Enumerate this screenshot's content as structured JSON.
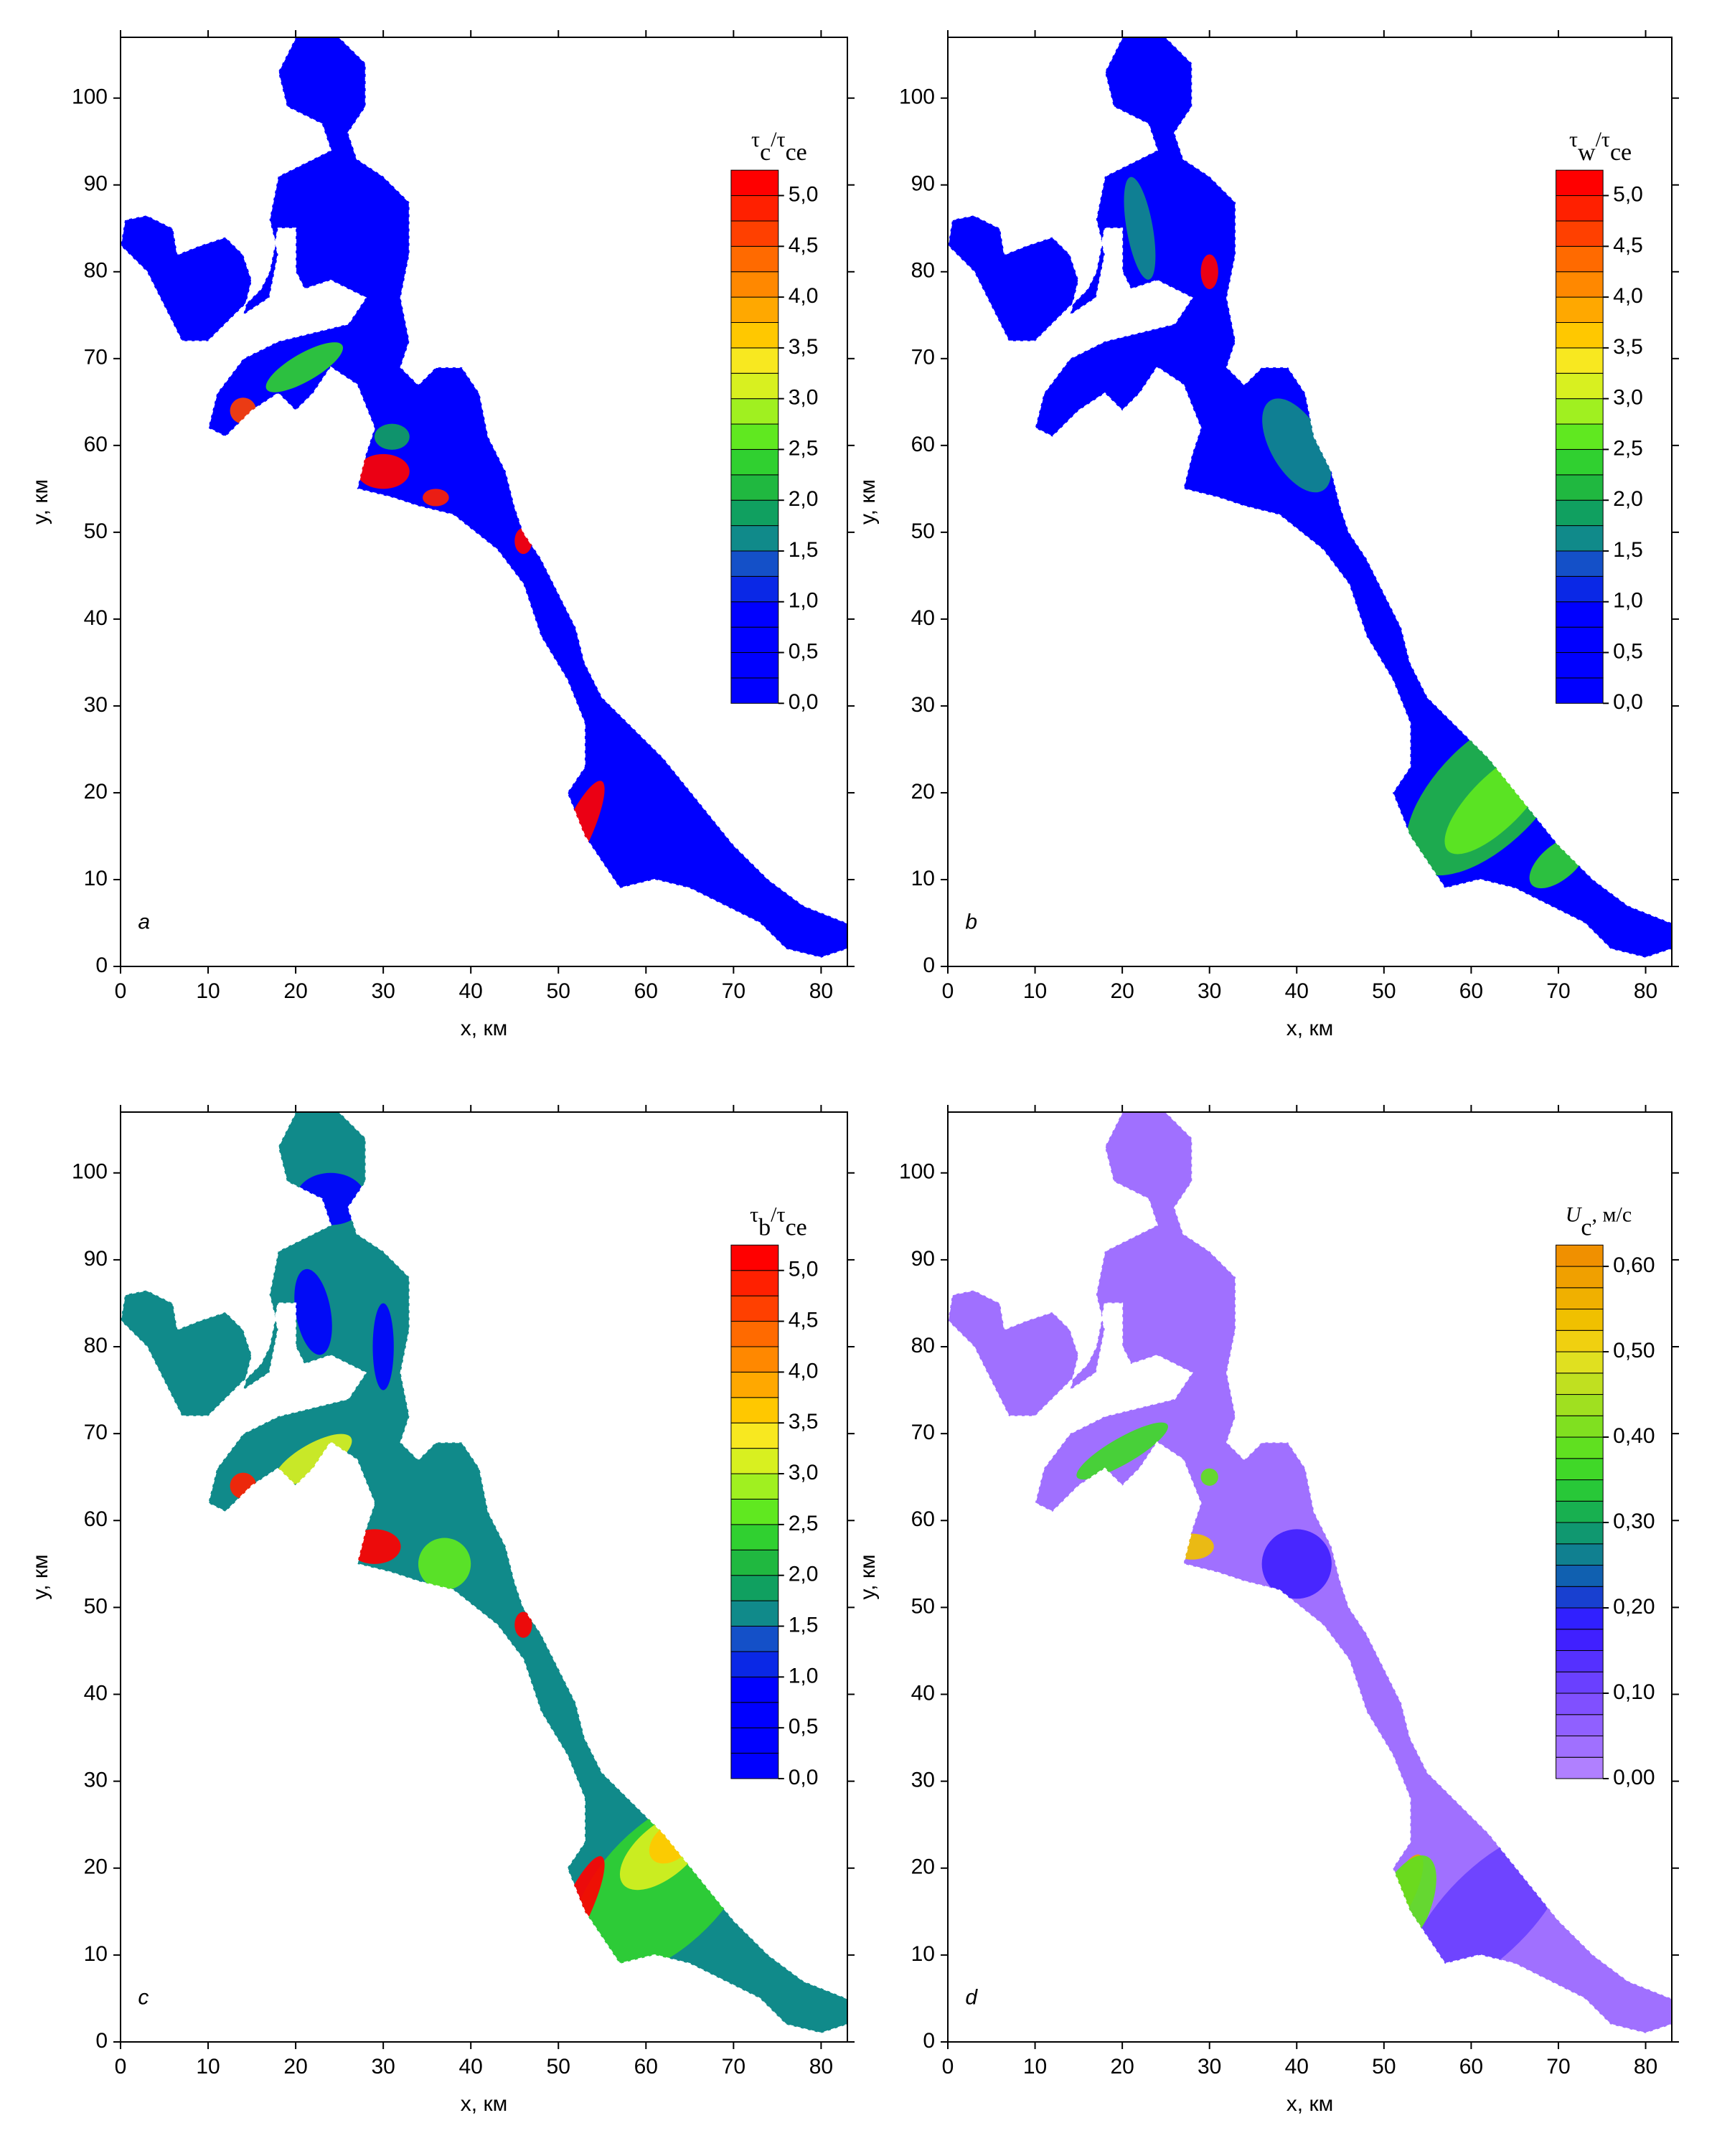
{
  "chart_data": [
    {
      "type": "contour",
      "panel_label": "a",
      "colorbar_title": [
        {
          "text": "τ"
        },
        {
          "text": "c",
          "sub": true
        },
        {
          "text": "/τ"
        },
        {
          "text": "ce",
          "sub": true
        }
      ],
      "xlabel": "x, км",
      "ylabel": "y, км",
      "xlim": [
        0,
        83
      ],
      "ylim": [
        0,
        107
      ],
      "xticks": [
        0,
        10,
        20,
        30,
        40,
        50,
        60,
        70,
        80
      ],
      "yticks": [
        0,
        10,
        20,
        30,
        40,
        50,
        60,
        70,
        80,
        90,
        100
      ],
      "colorbar": {
        "lim": [
          0,
          5.25
        ],
        "ticks": [
          {
            "value": 0,
            "label": "0,0"
          },
          {
            "value": 0.5,
            "label": "0,5"
          },
          {
            "value": 1,
            "label": "1,0"
          },
          {
            "value": 1.5,
            "label": "1,5"
          },
          {
            "value": 2,
            "label": "2,0"
          },
          {
            "value": 2.5,
            "label": "2,5"
          },
          {
            "value": 3,
            "label": "3,0"
          },
          {
            "value": 3.5,
            "label": "3,5"
          },
          {
            "value": 4,
            "label": "4,0"
          },
          {
            "value": 4.5,
            "label": "4,5"
          },
          {
            "value": 5,
            "label": "5,0"
          }
        ],
        "colors": [
          "#0000ff",
          "#0000ff",
          "#0000ff",
          "#0000ff",
          "#0a28e6",
          "#1450c8",
          "#108a8a",
          "#10a060",
          "#20b840",
          "#30d030",
          "#60e820",
          "#a0f020",
          "#d8f020",
          "#f8e820",
          "#ffc800",
          "#ffa800",
          "#ff8800",
          "#ff6a00",
          "#ff4000",
          "#ff2000",
          "#ff0000"
        ]
      }
    },
    {
      "type": "contour",
      "panel_label": "b",
      "colorbar_title": [
        {
          "text": "τ"
        },
        {
          "text": "w",
          "sub": true
        },
        {
          "text": "/τ"
        },
        {
          "text": "ce",
          "sub": true
        }
      ],
      "xlabel": "x, км",
      "ylabel": "y, км",
      "xlim": [
        0,
        83
      ],
      "ylim": [
        0,
        107
      ],
      "xticks": [
        0,
        10,
        20,
        30,
        40,
        50,
        60,
        70,
        80
      ],
      "yticks": [
        0,
        10,
        20,
        30,
        40,
        50,
        60,
        70,
        80,
        90,
        100
      ],
      "colorbar": {
        "lim": [
          0,
          5.25
        ],
        "ticks": [
          {
            "value": 0,
            "label": "0,0"
          },
          {
            "value": 0.5,
            "label": "0,5"
          },
          {
            "value": 1,
            "label": "1,0"
          },
          {
            "value": 1.5,
            "label": "1,5"
          },
          {
            "value": 2,
            "label": "2,0"
          },
          {
            "value": 2.5,
            "label": "2,5"
          },
          {
            "value": 3,
            "label": "3,0"
          },
          {
            "value": 3.5,
            "label": "3,5"
          },
          {
            "value": 4,
            "label": "4,0"
          },
          {
            "value": 4.5,
            "label": "4,5"
          },
          {
            "value": 5,
            "label": "5,0"
          }
        ],
        "colors": [
          "#0000ff",
          "#0000ff",
          "#0000ff",
          "#0000ff",
          "#0a28e6",
          "#1450c8",
          "#108a8a",
          "#10a060",
          "#20b840",
          "#30d030",
          "#60e820",
          "#a0f020",
          "#d8f020",
          "#f8e820",
          "#ffc800",
          "#ffa800",
          "#ff8800",
          "#ff6a00",
          "#ff4000",
          "#ff2000",
          "#ff0000"
        ]
      }
    },
    {
      "type": "contour",
      "panel_label": "c",
      "colorbar_title": [
        {
          "text": "τ"
        },
        {
          "text": "b",
          "sub": true
        },
        {
          "text": "/τ"
        },
        {
          "text": "ce",
          "sub": true
        }
      ],
      "xlabel": "x, км",
      "ylabel": "y, км",
      "xlim": [
        0,
        83
      ],
      "ylim": [
        0,
        107
      ],
      "xticks": [
        0,
        10,
        20,
        30,
        40,
        50,
        60,
        70,
        80
      ],
      "yticks": [
        0,
        10,
        20,
        30,
        40,
        50,
        60,
        70,
        80,
        90,
        100
      ],
      "colorbar": {
        "lim": [
          0,
          5.25
        ],
        "ticks": [
          {
            "value": 0,
            "label": "0,0"
          },
          {
            "value": 0.5,
            "label": "0,5"
          },
          {
            "value": 1,
            "label": "1,0"
          },
          {
            "value": 1.5,
            "label": "1,5"
          },
          {
            "value": 2,
            "label": "2,0"
          },
          {
            "value": 2.5,
            "label": "2,5"
          },
          {
            "value": 3,
            "label": "3,0"
          },
          {
            "value": 3.5,
            "label": "3,5"
          },
          {
            "value": 4,
            "label": "4,0"
          },
          {
            "value": 4.5,
            "label": "4,5"
          },
          {
            "value": 5,
            "label": "5,0"
          }
        ],
        "colors": [
          "#0000ff",
          "#0000ff",
          "#0000ff",
          "#0000ff",
          "#0a28e6",
          "#1450c8",
          "#108a8a",
          "#10a060",
          "#20b840",
          "#30d030",
          "#60e820",
          "#a0f020",
          "#d8f020",
          "#f8e820",
          "#ffc800",
          "#ffa800",
          "#ff8800",
          "#ff6a00",
          "#ff4000",
          "#ff2000",
          "#ff0000"
        ]
      }
    },
    {
      "type": "contour",
      "panel_label": "d",
      "colorbar_title": [
        {
          "text": "U",
          "italic": true
        },
        {
          "text": "c",
          "sub": true
        },
        {
          "text": ", м/с"
        }
      ],
      "xlabel": "x, км",
      "ylabel": "y, км",
      "xlim": [
        0,
        83
      ],
      "ylim": [
        0,
        107
      ],
      "xticks": [
        0,
        10,
        20,
        30,
        40,
        50,
        60,
        70,
        80
      ],
      "yticks": [
        0,
        10,
        20,
        30,
        40,
        50,
        60,
        70,
        80,
        90,
        100
      ],
      "colorbar": {
        "lim": [
          0,
          0.625
        ],
        "ticks": [
          {
            "value": 0,
            "label": "0,00"
          },
          {
            "value": 0.1,
            "label": "0,10"
          },
          {
            "value": 0.2,
            "label": "0,20"
          },
          {
            "value": 0.3,
            "label": "0,30"
          },
          {
            "value": 0.4,
            "label": "0,40"
          },
          {
            "value": 0.5,
            "label": "0,50"
          },
          {
            "value": 0.6,
            "label": "0,60"
          }
        ],
        "colors": [
          "#b080ff",
          "#a070ff",
          "#9060ff",
          "#8050ff",
          "#6a40ff",
          "#5530ff",
          "#4020ff",
          "#3020ff",
          "#1840d0",
          "#1060b0",
          "#108090",
          "#109870",
          "#18b050",
          "#28c838",
          "#40d828",
          "#60e020",
          "#80e020",
          "#a0e020",
          "#c0e020",
          "#e0e020",
          "#f0d010",
          "#f0c000",
          "#f0b000",
          "#f0a000",
          "#f09000"
        ]
      }
    }
  ]
}
